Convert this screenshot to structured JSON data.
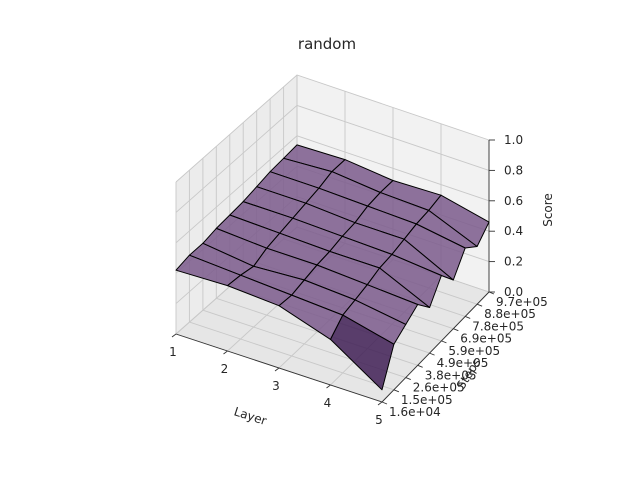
{
  "chart_data": {
    "type": "surface",
    "title": "random",
    "xlabel": "Layer",
    "ylabel": "Steps",
    "zlabel": "Score",
    "x_ticks": [
      "1",
      "2",
      "3",
      "4",
      "5"
    ],
    "y_ticks": [
      "1.6e+04",
      "1.5e+05",
      "2.6e+05",
      "3.8e+05",
      "4.9e+05",
      "5.9e+05",
      "6.9e+05",
      "7.8e+05",
      "8.8e+05",
      "9.7e+05"
    ],
    "z_ticks": [
      "0.0",
      "0.2",
      "0.4",
      "0.6",
      "0.8",
      "1.0"
    ],
    "x": [
      1,
      2,
      3,
      4,
      5
    ],
    "y": [
      16000,
      150000,
      260000,
      380000,
      490000,
      590000,
      690000,
      780000,
      880000,
      970000
    ],
    "zlim": [
      0,
      1
    ],
    "grid": true,
    "surface_color": "#7b5b8c",
    "surface_dark_color": "#3f1f55",
    "values": [
      [
        0.42,
        0.44,
        0.44,
        0.46,
        0.47,
        0.48,
        0.5,
        0.52,
        0.53,
        0.54
      ],
      [
        0.43,
        0.42,
        0.4,
        0.44,
        0.46,
        0.48,
        0.5,
        0.52,
        0.55,
        0.55
      ],
      [
        0.41,
        0.4,
        0.42,
        0.44,
        0.45,
        0.47,
        0.48,
        0.51,
        0.52,
        0.52
      ],
      [
        0.3,
        0.38,
        0.4,
        0.42,
        0.45,
        0.46,
        0.48,
        0.5,
        0.51,
        0.53
      ],
      [
        0.08,
        0.3,
        0.35,
        0.4,
        0.3,
        0.43,
        0.32,
        0.45,
        0.38,
        0.46
      ]
    ]
  }
}
